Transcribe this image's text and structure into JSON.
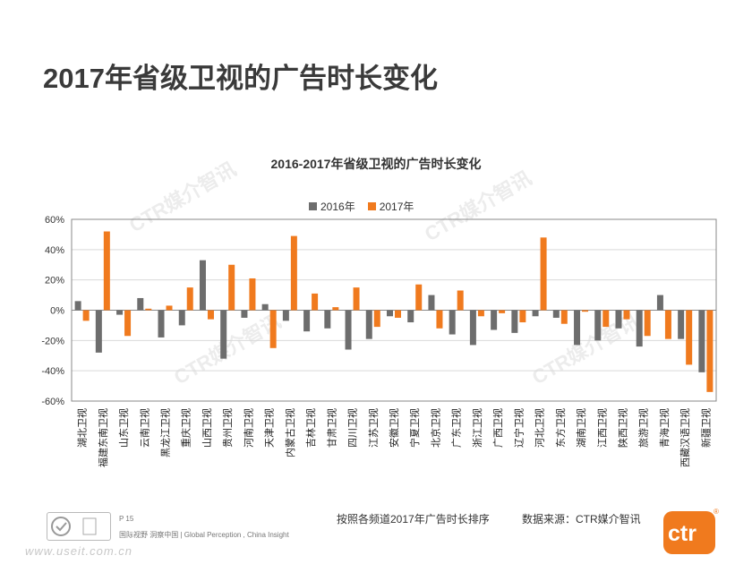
{
  "page_title": "2017年省级卫视的广告时长变化",
  "footer": {
    "page_number": "P 15",
    "tagline": "国际视野  洞察中国 |  Global Perception , China Insight",
    "website": "www.useit.com.cn",
    "sort_note": "按照各频道2017年广告时长排序",
    "source_note": "数据来源：CTR媒介智讯",
    "logo_text": "ctr",
    "watermark": "CTR媒介智讯"
  },
  "colors": {
    "series_2016": "#6d6d6d",
    "series_2017": "#f07a1e",
    "grid": "#d9d9d9",
    "axis": "#888888"
  },
  "chart_data": {
    "type": "bar",
    "title": "2016-2017年省级卫视的广告时长变化",
    "legend_position": "top",
    "grid": true,
    "ylim": [
      -60,
      60
    ],
    "yticks": [
      "60%",
      "40%",
      "20%",
      "0%",
      "-20%",
      "-40%",
      "-60%"
    ],
    "ytick_values": [
      60,
      40,
      20,
      0,
      -20,
      -40,
      -60
    ],
    "categories": [
      "湖北卫视",
      "福建东南卫视",
      "山东卫视",
      "云南卫视",
      "黑龙江卫视",
      "重庆卫视",
      "山西卫视",
      "贵州卫视",
      "河南卫视",
      "天津卫视",
      "内蒙古卫视",
      "吉林卫视",
      "甘肃卫视",
      "四川卫视",
      "江苏卫视",
      "安徽卫视",
      "宁夏卫视",
      "北京卫视",
      "广东卫视",
      "浙江卫视",
      "广西卫视",
      "辽宁卫视",
      "河北卫视",
      "东方卫视",
      "湖南卫视",
      "江西卫视",
      "陕西卫视",
      "旅游卫视",
      "青海卫视",
      "西藏汉语卫视",
      "新疆卫视"
    ],
    "series": [
      {
        "name": "2016年",
        "values": [
          6,
          -28,
          -3,
          8,
          -18,
          -10,
          33,
          -32,
          -5,
          4,
          -7,
          -14,
          -12,
          -26,
          -19,
          -4,
          -8,
          10,
          -16,
          -23,
          -13,
          -15,
          -4,
          -5,
          -23,
          -20,
          -12,
          -24,
          10,
          -19,
          -41
        ]
      },
      {
        "name": "2017年",
        "values": [
          -7,
          52,
          -17,
          1,
          3,
          15,
          -6,
          30,
          21,
          -25,
          49,
          11,
          2,
          15,
          -11,
          -5,
          17,
          -12,
          13,
          -4,
          -2,
          -8,
          48,
          -9,
          -1,
          -11,
          -6,
          -17,
          -19,
          -36,
          -54
        ]
      }
    ]
  }
}
